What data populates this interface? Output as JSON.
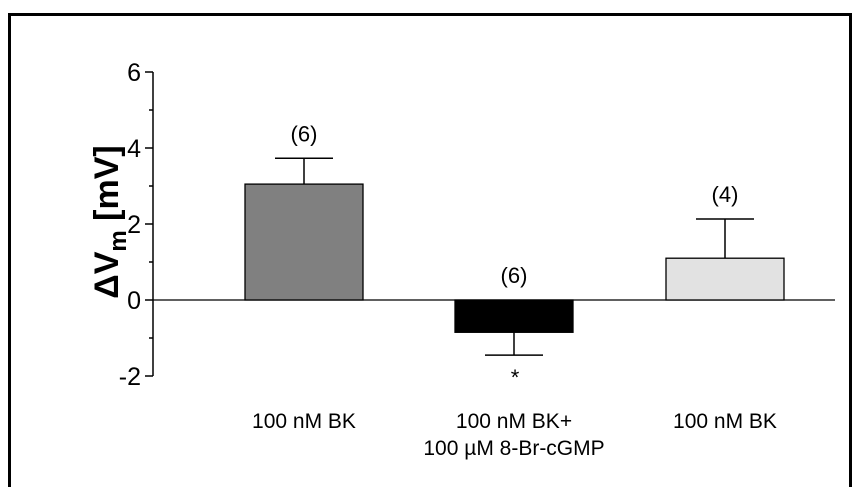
{
  "chart_data": {
    "type": "bar",
    "ylabel": "ΔV",
    "ylabel_subscript": "m",
    "ylabel_unit": "[mV]",
    "ylim": [
      -2,
      6
    ],
    "yticks": [
      -2,
      0,
      2,
      4,
      6
    ],
    "ytick_labels": [
      "-2",
      "0",
      "2",
      "4",
      "6"
    ],
    "grid": false,
    "legend": "none",
    "categories": [
      [
        "100 nM BK"
      ],
      [
        "100 nM BK+",
        "100 µM 8-Br-cGMP"
      ],
      [
        "100 nM BK"
      ]
    ],
    "values": [
      3.05,
      -0.85,
      1.1
    ],
    "errors": [
      0.68,
      0.6,
      1.03
    ],
    "n_labels": [
      "(6)",
      "(6)",
      "(4)"
    ],
    "significance": [
      "",
      "*",
      ""
    ],
    "colors": [
      "#808080",
      "#000000",
      "#e2e2e2"
    ]
  }
}
